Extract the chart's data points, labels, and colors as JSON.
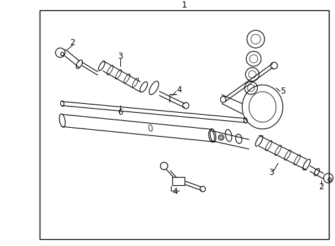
{
  "title": "1",
  "bg": "#ffffff",
  "lc": "#000000",
  "fig_w": 4.9,
  "fig_h": 3.6,
  "dpi": 100
}
